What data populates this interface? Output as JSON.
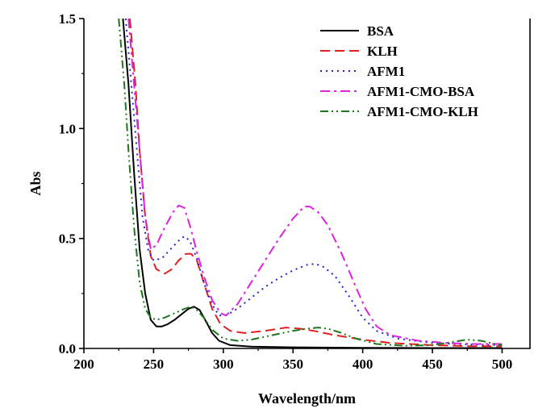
{
  "chart_data": {
    "type": "line",
    "xlabel": "Wavelength/nm",
    "ylabel": "Abs",
    "xlim": [
      200,
      520
    ],
    "ylim": [
      0,
      1.5
    ],
    "xticks": [
      200,
      250,
      300,
      350,
      400,
      450,
      500
    ],
    "xtick_labels": [
      "200",
      "250",
      "300",
      "350",
      "400",
      "450",
      "500"
    ],
    "yticks": [
      0,
      0.5,
      1.0,
      1.5
    ],
    "ytick_labels": [
      "0.0",
      "0.5",
      "1.0",
      "1.5"
    ],
    "grid": false,
    "legend_position": "top-right",
    "series": [
      {
        "name": "BSA",
        "color": "#000000",
        "dash": "solid",
        "points": [
          [
            228,
            1.5
          ],
          [
            232,
            1.2
          ],
          [
            236,
            0.8
          ],
          [
            240,
            0.45
          ],
          [
            244,
            0.25
          ],
          [
            248,
            0.13
          ],
          [
            252,
            0.1
          ],
          [
            256,
            0.1
          ],
          [
            260,
            0.11
          ],
          [
            265,
            0.13
          ],
          [
            270,
            0.155
          ],
          [
            275,
            0.18
          ],
          [
            279,
            0.19
          ],
          [
            283,
            0.175
          ],
          [
            287,
            0.13
          ],
          [
            292,
            0.07
          ],
          [
            297,
            0.035
          ],
          [
            305,
            0.015
          ],
          [
            320,
            0.008
          ],
          [
            350,
            0.005
          ],
          [
            400,
            0.003
          ],
          [
            450,
            0.002
          ],
          [
            500,
            0.002
          ]
        ]
      },
      {
        "name": "KLH",
        "color": "#e02020",
        "dash": "dashed",
        "points": [
          [
            233,
            1.5
          ],
          [
            237,
            1.2
          ],
          [
            240,
            0.9
          ],
          [
            244,
            0.6
          ],
          [
            248,
            0.42
          ],
          [
            252,
            0.36
          ],
          [
            258,
            0.34
          ],
          [
            263,
            0.36
          ],
          [
            268,
            0.4
          ],
          [
            273,
            0.43
          ],
          [
            277,
            0.43
          ],
          [
            281,
            0.4
          ],
          [
            286,
            0.3
          ],
          [
            292,
            0.18
          ],
          [
            298,
            0.11
          ],
          [
            305,
            0.08
          ],
          [
            315,
            0.07
          ],
          [
            330,
            0.08
          ],
          [
            345,
            0.095
          ],
          [
            355,
            0.09
          ],
          [
            365,
            0.08
          ],
          [
            380,
            0.06
          ],
          [
            400,
            0.04
          ],
          [
            420,
            0.025
          ],
          [
            450,
            0.015
          ],
          [
            480,
            0.01
          ],
          [
            500,
            0.01
          ]
        ]
      },
      {
        "name": "AFM1",
        "color": "#2222cc",
        "dash": "dotted",
        "points": [
          [
            230,
            1.5
          ],
          [
            234,
            1.2
          ],
          [
            238,
            0.9
          ],
          [
            242,
            0.6
          ],
          [
            246,
            0.45
          ],
          [
            250,
            0.4
          ],
          [
            256,
            0.41
          ],
          [
            262,
            0.45
          ],
          [
            268,
            0.49
          ],
          [
            272,
            0.51
          ],
          [
            276,
            0.49
          ],
          [
            281,
            0.41
          ],
          [
            286,
            0.3
          ],
          [
            292,
            0.2
          ],
          [
            297,
            0.15
          ],
          [
            302,
            0.15
          ],
          [
            310,
            0.18
          ],
          [
            320,
            0.23
          ],
          [
            330,
            0.28
          ],
          [
            340,
            0.32
          ],
          [
            350,
            0.355
          ],
          [
            360,
            0.38
          ],
          [
            366,
            0.385
          ],
          [
            372,
            0.37
          ],
          [
            380,
            0.33
          ],
          [
            390,
            0.24
          ],
          [
            400,
            0.14
          ],
          [
            410,
            0.08
          ],
          [
            425,
            0.045
          ],
          [
            450,
            0.025
          ],
          [
            475,
            0.018
          ],
          [
            500,
            0.015
          ]
        ]
      },
      {
        "name": "AFM1-CMO-BSA",
        "color": "#dd22dd",
        "dash": "dashdot",
        "points": [
          [
            232,
            1.5
          ],
          [
            236,
            1.2
          ],
          [
            240,
            0.9
          ],
          [
            244,
            0.6
          ],
          [
            248,
            0.45
          ],
          [
            252,
            0.47
          ],
          [
            258,
            0.55
          ],
          [
            264,
            0.62
          ],
          [
            268,
            0.65
          ],
          [
            272,
            0.64
          ],
          [
            276,
            0.56
          ],
          [
            281,
            0.44
          ],
          [
            286,
            0.33
          ],
          [
            292,
            0.22
          ],
          [
            298,
            0.16
          ],
          [
            302,
            0.15
          ],
          [
            310,
            0.2
          ],
          [
            320,
            0.3
          ],
          [
            330,
            0.4
          ],
          [
            340,
            0.5
          ],
          [
            350,
            0.59
          ],
          [
            358,
            0.645
          ],
          [
            362,
            0.645
          ],
          [
            368,
            0.62
          ],
          [
            375,
            0.56
          ],
          [
            385,
            0.43
          ],
          [
            395,
            0.28
          ],
          [
            402,
            0.18
          ],
          [
            410,
            0.1
          ],
          [
            420,
            0.06
          ],
          [
            440,
            0.035
          ],
          [
            460,
            0.025
          ],
          [
            480,
            0.02
          ],
          [
            500,
            0.02
          ]
        ]
      },
      {
        "name": "AFM1-CMO-KLH",
        "color": "#1a7a1a",
        "dash": "dashdotdot",
        "points": [
          [
            225,
            1.5
          ],
          [
            229,
            1.2
          ],
          [
            232,
            0.9
          ],
          [
            236,
            0.55
          ],
          [
            240,
            0.3
          ],
          [
            244,
            0.18
          ],
          [
            248,
            0.14
          ],
          [
            252,
            0.13
          ],
          [
            258,
            0.14
          ],
          [
            265,
            0.16
          ],
          [
            272,
            0.18
          ],
          [
            277,
            0.19
          ],
          [
            281,
            0.175
          ],
          [
            286,
            0.14
          ],
          [
            292,
            0.085
          ],
          [
            300,
            0.045
          ],
          [
            310,
            0.035
          ],
          [
            320,
            0.04
          ],
          [
            335,
            0.06
          ],
          [
            350,
            0.08
          ],
          [
            360,
            0.09
          ],
          [
            368,
            0.095
          ],
          [
            375,
            0.09
          ],
          [
            385,
            0.07
          ],
          [
            395,
            0.045
          ],
          [
            410,
            0.02
          ],
          [
            430,
            0.012
          ],
          [
            450,
            0.015
          ],
          [
            465,
            0.03
          ],
          [
            475,
            0.04
          ],
          [
            485,
            0.035
          ],
          [
            495,
            0.02
          ],
          [
            500,
            0.015
          ]
        ]
      }
    ]
  }
}
